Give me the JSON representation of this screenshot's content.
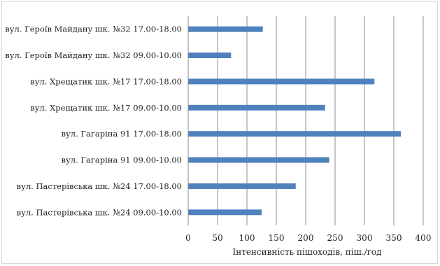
{
  "chart_data": {
    "type": "bar",
    "orientation": "horizontal",
    "categories": [
      "вул. Героїв Майдану шк. №32 17.00-18.00",
      "вул. Героїв Майдану шк. №32 09.00-10.00",
      "вул. Хрещатик шк. №17 17.00-18.00",
      "вул. Хрещатик шк. №17 09.00-10.00",
      "вул. Гагаріна 91 17.00-18.00",
      "вул. Гагаріна 91 09.00-10.00",
      "вул. Пастерівська шк. №24 17.00-18.00",
      "вул. Пастерівська шк. №24 09.00-10.00"
    ],
    "values": [
      127,
      73,
      317,
      233,
      362,
      240,
      183,
      125
    ],
    "xlabel": "Інтенсивність пішоходів, піш./год",
    "ylabel": "",
    "title": "",
    "xlim": [
      0,
      400
    ],
    "xticks": [
      "0",
      "50",
      "100",
      "150",
      "200",
      "250",
      "300",
      "350",
      "400"
    ],
    "grid": "vertical",
    "legend": "none",
    "bar_color": "#4f81bd"
  }
}
